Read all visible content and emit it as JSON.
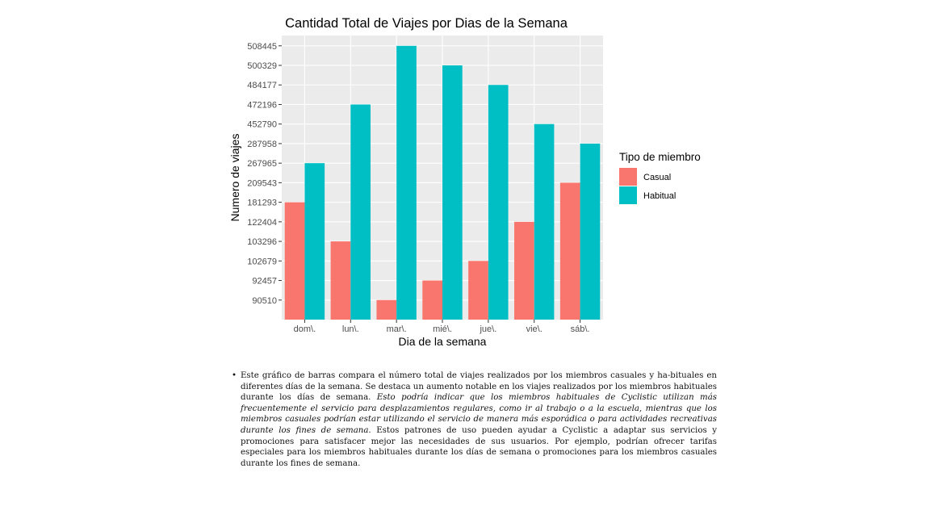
{
  "chart_data": {
    "type": "bar",
    "title": "Cantidad Total de Viajes por Dias de la Semana",
    "xlabel": "Dia de la semana",
    "ylabel": "Numero de viajes",
    "categories": [
      "dom\\.",
      "lun\\.",
      "mar\\.",
      "mié\\.",
      "jue\\.",
      "vie\\.",
      "sáb\\."
    ],
    "y_ticks": [
      "90510",
      "92457",
      "102679",
      "103296",
      "122404",
      "181293",
      "209543",
      "267965",
      "287958",
      "452790",
      "472196",
      "484177",
      "500329",
      "508445"
    ],
    "y_scale": "discrete (ticks evenly spaced, one per bar value)",
    "legend_title": "Tipo de miembro",
    "legend_position": "right",
    "series": [
      {
        "name": "Casual",
        "color": "#F8766D",
        "values": [
          181293,
          103296,
          90510,
          92457,
          102679,
          122404,
          209543
        ]
      },
      {
        "name": "Habitual",
        "color": "#00BFC4",
        "values": [
          267965,
          472196,
          508445,
          500329,
          484177,
          452790,
          287958
        ]
      }
    ],
    "grid": true,
    "panel_background": "#EBEBEB"
  },
  "caption": {
    "part1": "Este gráfico de barras compara el número total de viajes realizados por los miembros casuales y ha-bituales en diferentes días de la semana. Se destaca un aumento notable en los viajes realizados por los miembros habituales durante los días de semana. ",
    "part2_italic": "Esto podría indicar que los miembros habituales de Cyclistic utilizan más frecuentemente el servicio para desplazamientos regulares, como ir al trabajo o a la escuela, mientras que los miembros casuales podrían estar utilizando el servicio de manera más esporádica o para actividades recreativas durante los fines de semana.",
    "part3": " Estos patrones de uso pueden ayudar a Cyclistic a adaptar sus servicios y promociones para satisfacer mejor las necesidades de sus usuarios. Por ejemplo, podrían ofrecer tarifas especiales para los miembros habituales durante los días de semana o promociones para los miembros casuales durante los fines de semana."
  }
}
